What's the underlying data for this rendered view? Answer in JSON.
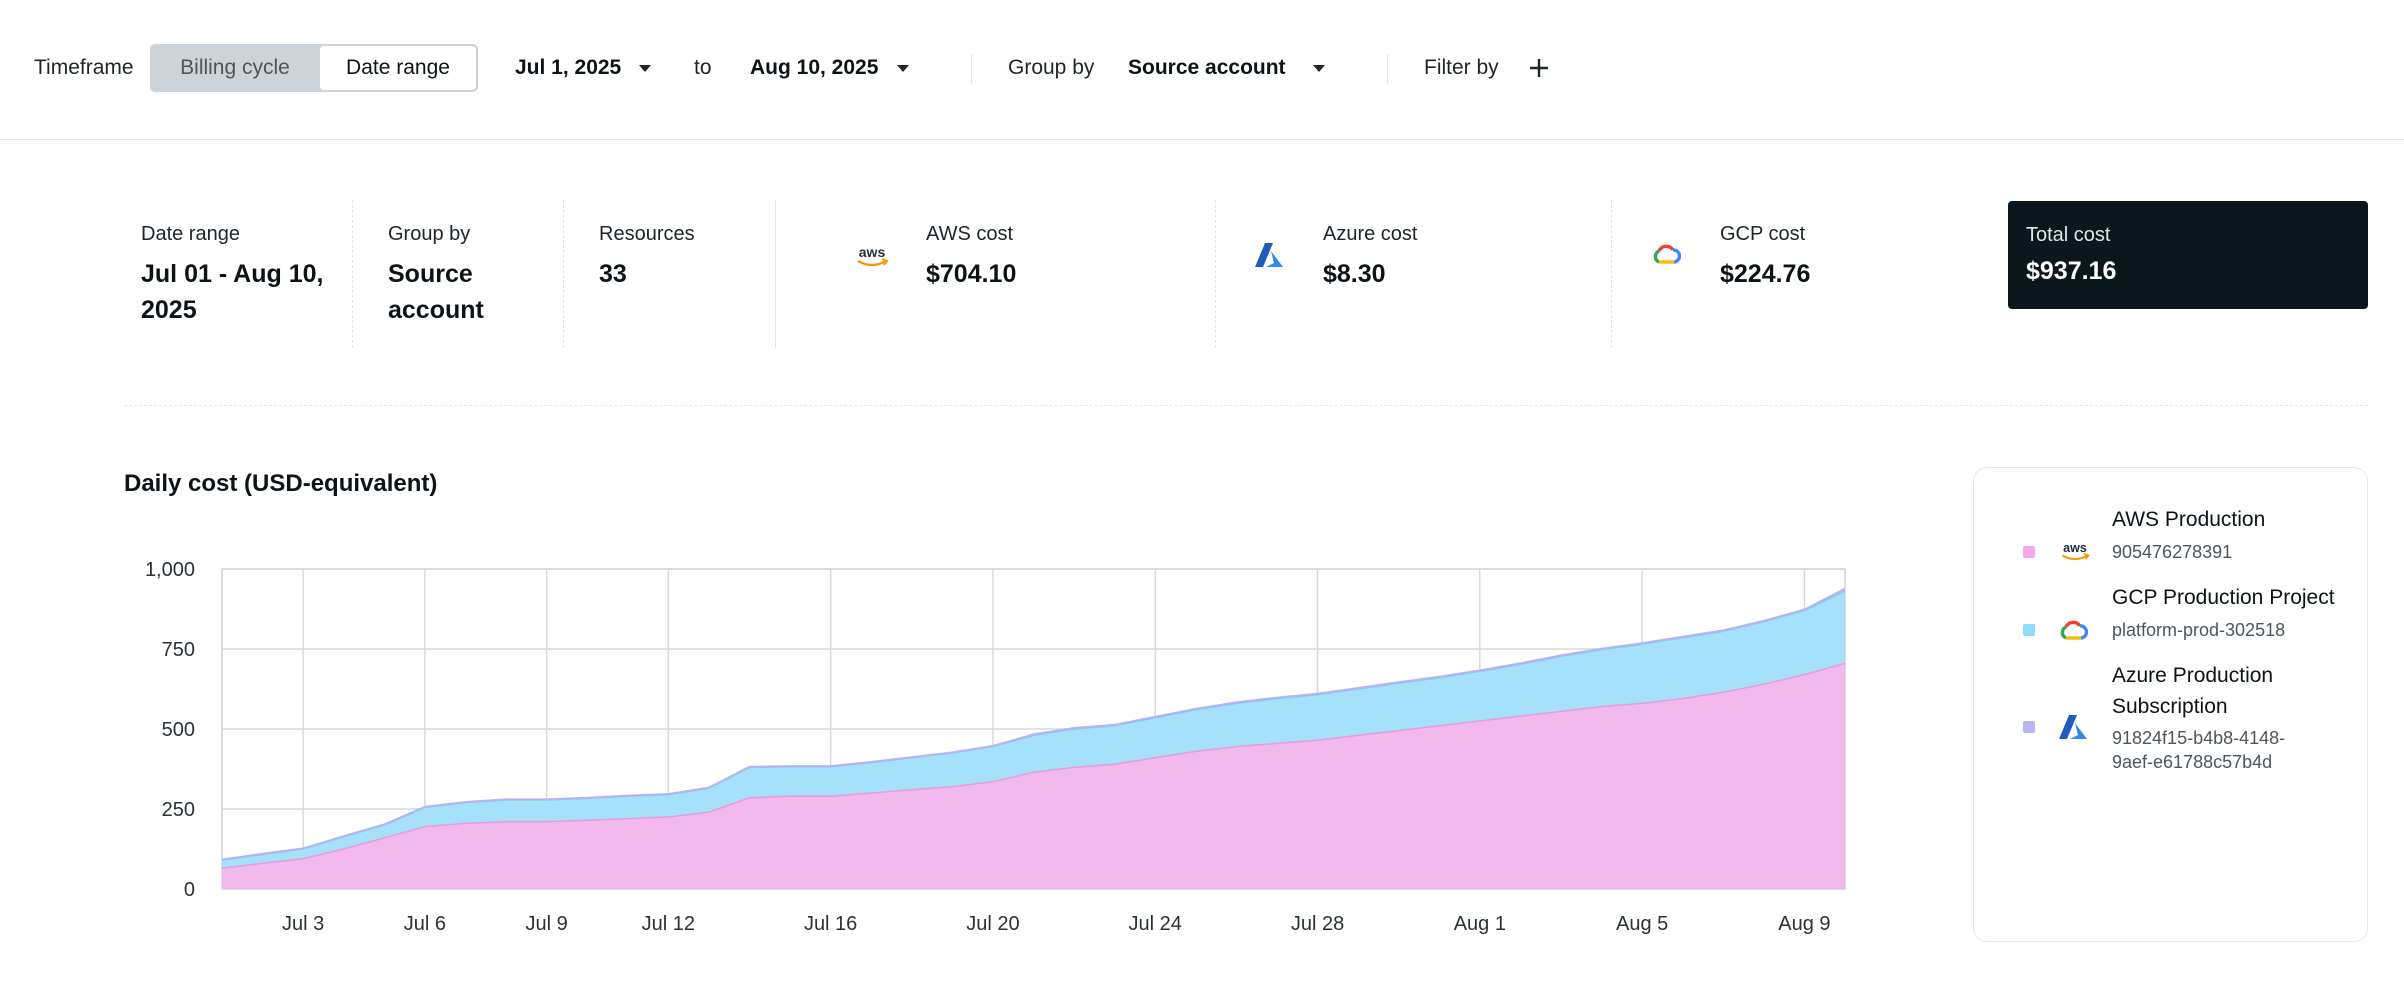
{
  "toolbar": {
    "timeframe_label": "Timeframe",
    "timeframe_options": [
      "Billing cycle",
      "Date range"
    ],
    "timeframe_selected": "Date range",
    "start_date": "Jul 1, 2025",
    "to_label": "to",
    "end_date": "Aug 10, 2025",
    "group_by_label": "Group by",
    "group_by_value": "Source account",
    "filter_label": "Filter by"
  },
  "summary": {
    "date_range_label": "Date range",
    "date_range_value": "Jul 01 - Aug 10, 2025",
    "group_by_label": "Group by",
    "group_by_value": "Source account",
    "resources_label": "Resources",
    "resources_value": "33",
    "aws_label": "AWS cost",
    "aws_value": "$704.10",
    "azure_label": "Azure cost",
    "azure_value": "$8.30",
    "gcp_label": "GCP cost",
    "gcp_value": "$224.76",
    "total_label": "Total cost",
    "total_value": "$937.16"
  },
  "chart_title": "Daily cost (USD-equivalent)",
  "legend": [
    {
      "name": "AWS Production",
      "id": "905476278391",
      "color": "#f2a8ea",
      "icon": "aws-icon"
    },
    {
      "name": "GCP Production Project",
      "id": "platform-prod-302518",
      "color": "#8fdcfb",
      "icon": "gcp-icon"
    },
    {
      "name": "Azure Production Subscription",
      "id": "91824f15-b4b8-4148-9aef-e61788c57b4d",
      "color": "#b8b5f2",
      "icon": "azure-icon"
    }
  ],
  "colors": {
    "aws_fill": "#f4b9ec",
    "aws_line": "#e79bde",
    "gcp_fill": "#a5e1fb",
    "gcp_line": "#7fcdf3",
    "azure_line": "#b7b3f0",
    "total_box": "#0c171d"
  },
  "chart_data": {
    "type": "area",
    "stacked": true,
    "title": "Daily cost (USD-equivalent)",
    "xlabel": "",
    "ylabel": "",
    "ylim": [
      0,
      1000
    ],
    "yticks": [
      "0",
      "250",
      "500",
      "750",
      "1,000"
    ],
    "xticks": [
      "Jul 3",
      "Jul 6",
      "Jul 9",
      "Jul 12",
      "Jul 16",
      "Jul 20",
      "Jul 24",
      "Jul 28",
      "Aug 1",
      "Aug 5",
      "Aug 9"
    ],
    "grid": true,
    "x": [
      "Jul 1",
      "Jul 2",
      "Jul 3",
      "Jul 4",
      "Jul 5",
      "Jul 6",
      "Jul 7",
      "Jul 8",
      "Jul 9",
      "Jul 10",
      "Jul 11",
      "Jul 12",
      "Jul 13",
      "Jul 14",
      "Jul 15",
      "Jul 16",
      "Jul 17",
      "Jul 18",
      "Jul 19",
      "Jul 20",
      "Jul 21",
      "Jul 22",
      "Jul 23",
      "Jul 24",
      "Jul 25",
      "Jul 26",
      "Jul 27",
      "Jul 28",
      "Jul 29",
      "Jul 30",
      "Jul 31",
      "Aug 1",
      "Aug 2",
      "Aug 3",
      "Aug 4",
      "Aug 5",
      "Aug 6",
      "Aug 7",
      "Aug 8",
      "Aug 9",
      "Aug 10"
    ],
    "series": [
      {
        "name": "AWS Production",
        "values": [
          65,
          80,
          95,
          125,
          160,
          195,
          205,
          210,
          210,
          215,
          220,
          225,
          240,
          285,
          290,
          290,
          300,
          310,
          320,
          335,
          365,
          380,
          390,
          410,
          430,
          445,
          455,
          465,
          480,
          495,
          510,
          525,
          540,
          555,
          570,
          580,
          595,
          615,
          640,
          670,
          705
        ]
      },
      {
        "name": "GCP Production Project",
        "values": [
          25,
          28,
          30,
          38,
          40,
          60,
          65,
          68,
          68,
          68,
          70,
          70,
          75,
          95,
          92,
          92,
          95,
          100,
          105,
          110,
          115,
          120,
          120,
          125,
          130,
          135,
          140,
          142,
          145,
          148,
          150,
          155,
          162,
          172,
          178,
          185,
          190,
          190,
          195,
          200,
          225
        ]
      },
      {
        "name": "Azure Production Subscription",
        "values": [
          2,
          2,
          2,
          2,
          2,
          2,
          2,
          2,
          2,
          2,
          2,
          2,
          2,
          2,
          2,
          2,
          2,
          2,
          2,
          2,
          3,
          3,
          3,
          3,
          3,
          3,
          3,
          3,
          3,
          3,
          3,
          3,
          3,
          3,
          3,
          3,
          3,
          3,
          3,
          3,
          8
        ]
      }
    ]
  }
}
